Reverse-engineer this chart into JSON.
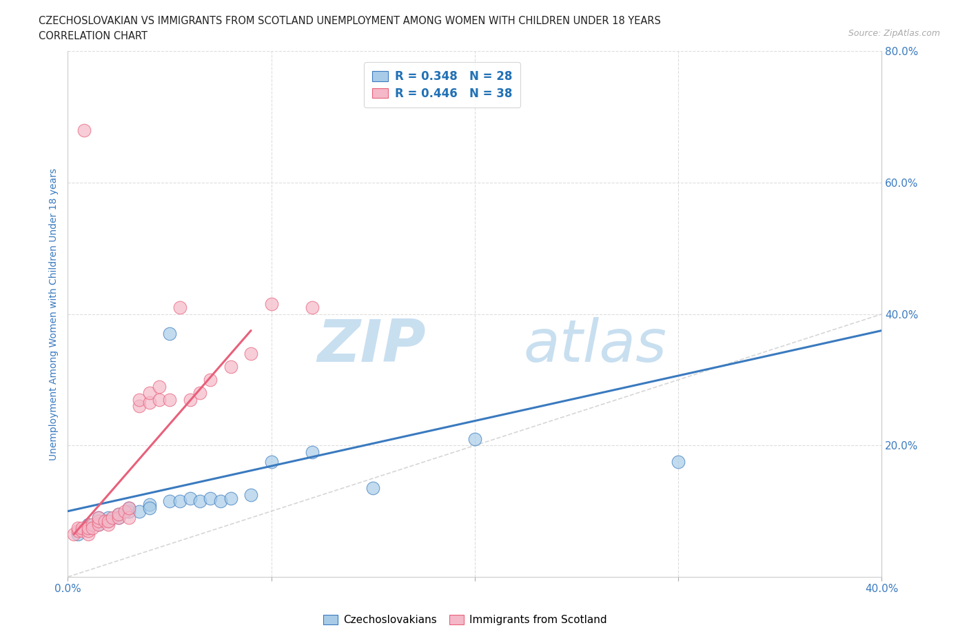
{
  "title_line1": "CZECHOSLOVAKIAN VS IMMIGRANTS FROM SCOTLAND UNEMPLOYMENT AMONG WOMEN WITH CHILDREN UNDER 18 YEARS",
  "title_line2": "CORRELATION CHART",
  "source": "Source: ZipAtlas.com",
  "ylabel": "Unemployment Among Women with Children Under 18 years",
  "xlim": [
    0.0,
    0.4
  ],
  "ylim": [
    0.0,
    0.8
  ],
  "xtick_vals": [
    0.0,
    0.1,
    0.2,
    0.3,
    0.4
  ],
  "xtick_labels": [
    "0.0%",
    "",
    "",
    "",
    "40.0%"
  ],
  "ytick_vals": [
    0.0,
    0.2,
    0.4,
    0.6,
    0.8
  ],
  "ytick_labels_right": [
    "",
    "20.0%",
    "40.0%",
    "60.0%",
    "80.0%"
  ],
  "blue_scatter_x": [
    0.005,
    0.01,
    0.01,
    0.015,
    0.015,
    0.02,
    0.02,
    0.025,
    0.025,
    0.03,
    0.03,
    0.035,
    0.04,
    0.04,
    0.05,
    0.05,
    0.055,
    0.06,
    0.065,
    0.07,
    0.075,
    0.08,
    0.09,
    0.1,
    0.12,
    0.15,
    0.2,
    0.3
  ],
  "blue_scatter_y": [
    0.065,
    0.075,
    0.08,
    0.08,
    0.09,
    0.085,
    0.09,
    0.09,
    0.095,
    0.1,
    0.105,
    0.1,
    0.11,
    0.105,
    0.115,
    0.37,
    0.115,
    0.12,
    0.115,
    0.12,
    0.115,
    0.12,
    0.125,
    0.175,
    0.19,
    0.135,
    0.21,
    0.175
  ],
  "pink_scatter_x": [
    0.003,
    0.005,
    0.005,
    0.007,
    0.007,
    0.008,
    0.01,
    0.01,
    0.01,
    0.012,
    0.012,
    0.015,
    0.015,
    0.015,
    0.018,
    0.02,
    0.02,
    0.022,
    0.025,
    0.025,
    0.028,
    0.03,
    0.03,
    0.035,
    0.035,
    0.04,
    0.04,
    0.045,
    0.045,
    0.05,
    0.055,
    0.06,
    0.065,
    0.07,
    0.08,
    0.09,
    0.1,
    0.12
  ],
  "pink_scatter_y": [
    0.065,
    0.07,
    0.075,
    0.07,
    0.075,
    0.68,
    0.065,
    0.07,
    0.075,
    0.08,
    0.075,
    0.08,
    0.085,
    0.09,
    0.085,
    0.08,
    0.085,
    0.09,
    0.09,
    0.095,
    0.1,
    0.09,
    0.105,
    0.26,
    0.27,
    0.265,
    0.28,
    0.27,
    0.29,
    0.27,
    0.41,
    0.27,
    0.28,
    0.3,
    0.32,
    0.34,
    0.415,
    0.41
  ],
  "blue_line_x": [
    0.0,
    0.4
  ],
  "blue_line_y": [
    0.1,
    0.375
  ],
  "pink_line_x": [
    0.003,
    0.09
  ],
  "pink_line_y": [
    0.065,
    0.375
  ],
  "diagonal_line_x": [
    0.0,
    0.4
  ],
  "diagonal_line_y": [
    0.0,
    0.4
  ],
  "blue_color": "#a8cce8",
  "pink_color": "#f4b8c8",
  "blue_line_color": "#3a7abf",
  "pink_line_color": "#e8607a",
  "diagonal_color": "#cccccc",
  "watermark_zip": "ZIP",
  "watermark_atlas": "atlas",
  "watermark_color": "#c8dff0",
  "legend_R_blue": "R = 0.348",
  "legend_N_blue": "N = 28",
  "legend_R_pink": "R = 0.446",
  "legend_N_pink": "N = 38",
  "legend_text_color": "#2171b5",
  "background_color": "#ffffff",
  "grid_color": "#dddddd",
  "title_color": "#222222",
  "axis_label_color": "#3a7abf",
  "tick_label_color": "#3a7abf",
  "source_color": "#aaaaaa"
}
